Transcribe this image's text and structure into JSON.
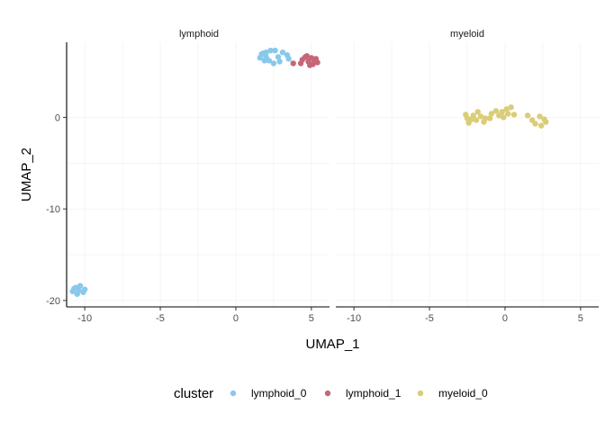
{
  "chart_data": {
    "type": "scatter",
    "xlabel": "UMAP_1",
    "ylabel": "UMAP_2",
    "xlim": [
      -11.2,
      6.2
    ],
    "ylim": [
      -20.7,
      8.2
    ],
    "x_ticks": [
      -10,
      -5,
      0,
      5
    ],
    "y_ticks": [
      -20,
      -10,
      0
    ],
    "grid": true,
    "legend": {
      "title": "cluster",
      "position": "bottom",
      "entries": [
        {
          "name": "lymphoid_0",
          "color": "#89c8ea"
        },
        {
          "name": "lymphoid_1",
          "color": "#c76677"
        },
        {
          "name": "myeloid_0",
          "color": "#dbcc78"
        }
      ]
    },
    "panels": [
      {
        "title": "lymphoid",
        "series": [
          {
            "name": "lymphoid_0",
            "color": "#89c8ea",
            "points": [
              [
                1.7,
                6.9
              ],
              [
                2.0,
                7.1
              ],
              [
                2.3,
                7.3
              ],
              [
                2.6,
                7.3
              ],
              [
                2.0,
                6.6
              ],
              [
                1.6,
                6.5
              ],
              [
                2.2,
                6.2
              ],
              [
                2.8,
                6.6
              ],
              [
                3.1,
                7.1
              ],
              [
                3.4,
                6.8
              ],
              [
                2.5,
                5.9
              ],
              [
                1.9,
                6.2
              ],
              [
                2.9,
                6.1
              ],
              [
                3.5,
                6.4
              ],
              [
                1.8,
                7.0
              ],
              [
                -10.6,
                -18.6
              ],
              [
                -10.3,
                -18.4
              ],
              [
                -10.0,
                -18.8
              ],
              [
                -10.8,
                -19.0
              ],
              [
                -10.5,
                -19.3
              ],
              [
                -10.1,
                -19.1
              ],
              [
                -10.7,
                -18.7
              ],
              [
                -10.4,
                -18.9
              ]
            ]
          },
          {
            "name": "lymphoid_1",
            "color": "#c76677",
            "points": [
              [
                3.8,
                5.9
              ],
              [
                4.4,
                6.3
              ],
              [
                4.7,
                6.7
              ],
              [
                5.0,
                6.5
              ],
              [
                5.3,
                6.4
              ],
              [
                4.8,
                6.1
              ],
              [
                5.1,
                5.8
              ],
              [
                5.4,
                6.0
              ],
              [
                4.9,
                5.7
              ],
              [
                4.3,
                5.9
              ],
              [
                4.6,
                6.6
              ],
              [
                5.2,
                6.2
              ]
            ]
          }
        ]
      },
      {
        "title": "myeloid",
        "series": [
          {
            "name": "myeloid_0",
            "color": "#dbcc78",
            "points": [
              [
                -2.6,
                0.3
              ],
              [
                -2.5,
                -0.1
              ],
              [
                -2.1,
                0.2
              ],
              [
                -1.8,
                0.6
              ],
              [
                -1.6,
                0.1
              ],
              [
                -1.9,
                -0.3
              ],
              [
                -2.4,
                -0.6
              ],
              [
                -1.3,
                -0.1
              ],
              [
                -0.9,
                0.4
              ],
              [
                -0.6,
                0.7
              ],
              [
                -0.4,
                0.2
              ],
              [
                -0.2,
                0.6
              ],
              [
                0.1,
                0.9
              ],
              [
                0.4,
                1.1
              ],
              [
                0.2,
                0.4
              ],
              [
                -0.1,
                0.0
              ],
              [
                0.6,
                0.3
              ],
              [
                -1.0,
                -0.1
              ],
              [
                -2.2,
                -0.2
              ],
              [
                1.5,
                0.2
              ],
              [
                1.8,
                -0.3
              ],
              [
                2.0,
                -0.7
              ],
              [
                2.3,
                0.1
              ],
              [
                2.6,
                -0.2
              ],
              [
                2.7,
                -0.5
              ],
              [
                2.4,
                -0.9
              ],
              [
                -1.4,
                -0.5
              ]
            ]
          }
        ]
      }
    ]
  }
}
